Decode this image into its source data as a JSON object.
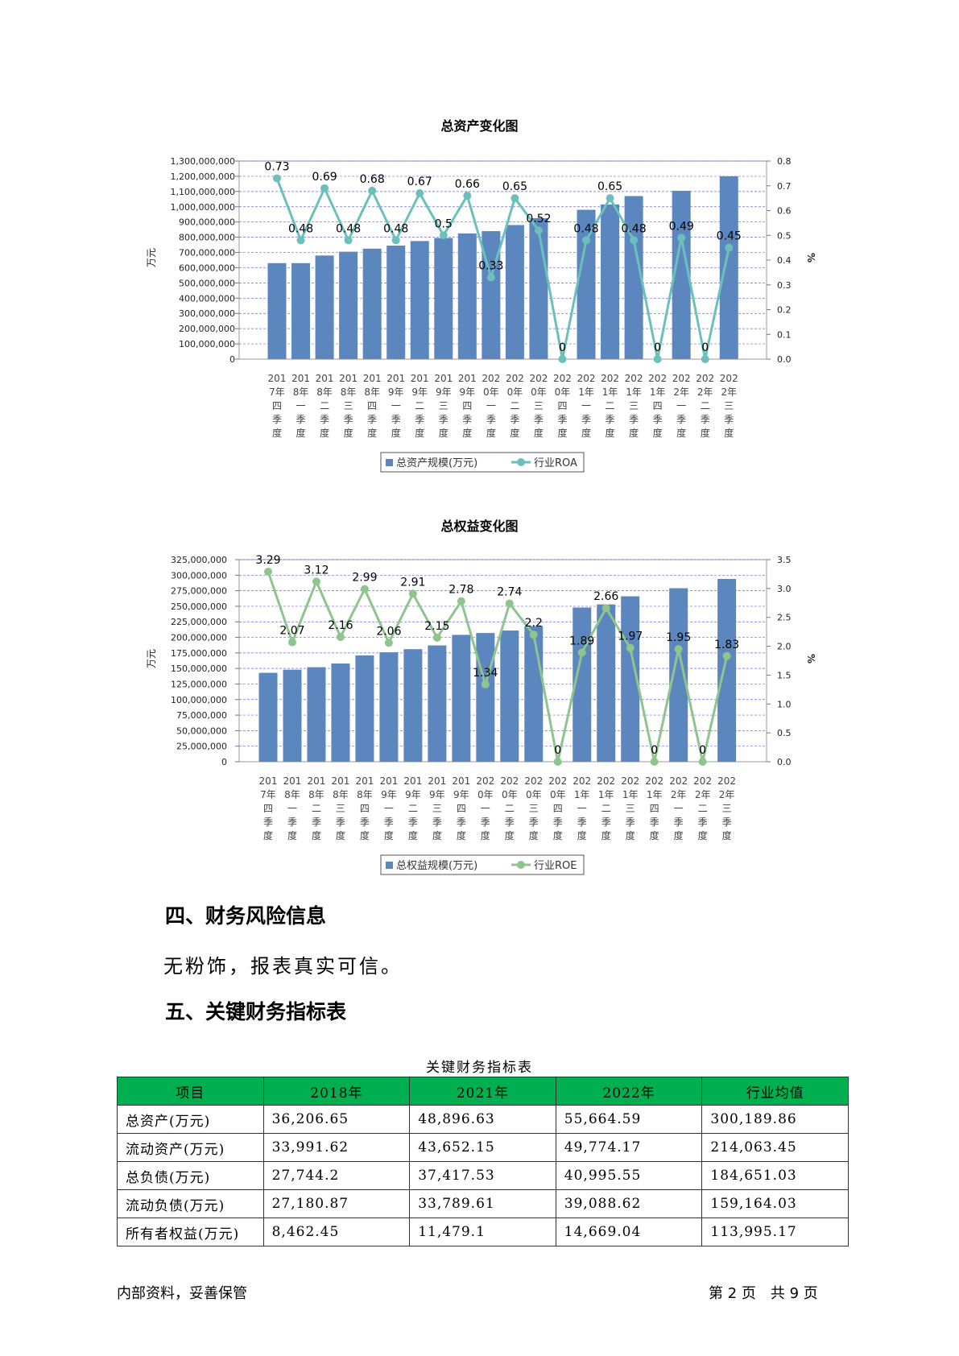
{
  "charts": [
    {
      "title": "总资产变化图",
      "ylabel_left": "万元",
      "ylabel_right": "%",
      "left_ticks": [
        "1,300,000,000",
        "1,200,000,000",
        "1,100,000,000",
        "1,000,000,000",
        "900,000,000",
        "800,000,000",
        "700,000,000",
        "600,000,000",
        "500,000,000",
        "400,000,000",
        "300,000,000",
        "200,000,000",
        "100,000,000",
        "0"
      ],
      "right_ticks": [
        "0.8",
        "0.7",
        "0.6",
        "0.5",
        "0.4",
        "0.3",
        "0.2",
        "0.1",
        "0.0"
      ],
      "categories": [
        [
          "201",
          "7年",
          "四",
          "季",
          "度"
        ],
        [
          "201",
          "8年",
          "一",
          "季",
          "度"
        ],
        [
          "201",
          "8年",
          "二",
          "季",
          "度"
        ],
        [
          "201",
          "8年",
          "三",
          "季",
          "度"
        ],
        [
          "201",
          "8年",
          "四",
          "季",
          "度"
        ],
        [
          "201",
          "9年",
          "一",
          "季",
          "度"
        ],
        [
          "201",
          "9年",
          "二",
          "季",
          "度"
        ],
        [
          "201",
          "9年",
          "三",
          "季",
          "度"
        ],
        [
          "201",
          "9年",
          "四",
          "季",
          "度"
        ],
        [
          "202",
          "0年",
          "一",
          "季",
          "度"
        ],
        [
          "202",
          "0年",
          "二",
          "季",
          "度"
        ],
        [
          "202",
          "0年",
          "三",
          "季",
          "度"
        ],
        [
          "202",
          "0年",
          "四",
          "季",
          "度"
        ],
        [
          "202",
          "1年",
          "一",
          "季",
          "度"
        ],
        [
          "202",
          "1年",
          "二",
          "季",
          "度"
        ],
        [
          "202",
          "1年",
          "三",
          "季",
          "度"
        ],
        [
          "202",
          "1年",
          "四",
          "季",
          "度"
        ],
        [
          "202",
          "2年",
          "一",
          "季",
          "度"
        ],
        [
          "202",
          "2年",
          "二",
          "季",
          "度"
        ],
        [
          "202",
          "2年",
          "三",
          "季",
          "度"
        ]
      ],
      "legend_bar": "总资产规模(万元)",
      "legend_line": "行业ROA",
      "line_labels": [
        "0.73",
        "0.48",
        "0.69",
        "0.48",
        "0.68",
        "0.48",
        "0.67",
        "0.5",
        "0.66",
        "0.33",
        "0.65",
        "0.52",
        "0",
        "0.48",
        "0.65",
        "0.48",
        "0",
        "0.49",
        "0",
        "0.45"
      ],
      "colors": {
        "bar": "#5b86be",
        "line": "#6cc0bb"
      }
    },
    {
      "title": "总权益变化图",
      "ylabel_left": "万元",
      "ylabel_right": "%",
      "left_ticks": [
        "325,000,000",
        "300,000,000",
        "275,000,000",
        "250,000,000",
        "225,000,000",
        "200,000,000",
        "175,000,000",
        "150,000,000",
        "125,000,000",
        "100,000,000",
        "75,000,000",
        "50,000,000",
        "25,000,000",
        "0"
      ],
      "right_ticks": [
        "3.5",
        "3.0",
        "2.5",
        "2.0",
        "1.5",
        "1.0",
        "0.5",
        "0.0"
      ],
      "categories": [
        [
          "201",
          "7年",
          "四",
          "季",
          "度"
        ],
        [
          "201",
          "8年",
          "一",
          "季",
          "度"
        ],
        [
          "201",
          "8年",
          "二",
          "季",
          "度"
        ],
        [
          "201",
          "8年",
          "三",
          "季",
          "度"
        ],
        [
          "201",
          "8年",
          "四",
          "季",
          "度"
        ],
        [
          "201",
          "9年",
          "一",
          "季",
          "度"
        ],
        [
          "201",
          "9年",
          "二",
          "季",
          "度"
        ],
        [
          "201",
          "9年",
          "三",
          "季",
          "度"
        ],
        [
          "201",
          "9年",
          "四",
          "季",
          "度"
        ],
        [
          "202",
          "0年",
          "一",
          "季",
          "度"
        ],
        [
          "202",
          "0年",
          "二",
          "季",
          "度"
        ],
        [
          "202",
          "0年",
          "三",
          "季",
          "度"
        ],
        [
          "202",
          "0年",
          "四",
          "季",
          "度"
        ],
        [
          "202",
          "1年",
          "一",
          "季",
          "度"
        ],
        [
          "202",
          "1年",
          "二",
          "季",
          "度"
        ],
        [
          "202",
          "1年",
          "三",
          "季",
          "度"
        ],
        [
          "202",
          "1年",
          "四",
          "季",
          "度"
        ],
        [
          "202",
          "2年",
          "一",
          "季",
          "度"
        ],
        [
          "202",
          "2年",
          "二",
          "季",
          "度"
        ],
        [
          "202",
          "2年",
          "三",
          "季",
          "度"
        ]
      ],
      "legend_bar": "总权益规模(万元)",
      "legend_line": "行业ROE",
      "line_labels": [
        "3.29",
        "2.07",
        "3.12",
        "2.16",
        "2.99",
        "2.06",
        "2.91",
        "2.15",
        "2.78",
        "1.34",
        "2.74",
        "2.2",
        "0",
        "1.89",
        "2.66",
        "1.97",
        "0",
        "1.95",
        "0",
        "1.83"
      ],
      "colors": {
        "bar": "#5b86be",
        "line": "#8fc48f"
      }
    }
  ],
  "chart_data": [
    {
      "type": "bar",
      "title": "总资产变化图",
      "xlabel": "",
      "ylabel": "万元",
      "ylabel_right": "%",
      "ylim": [
        0,
        1300000000
      ],
      "ylim_right": [
        0,
        0.8
      ],
      "grid": true,
      "legend": "bottom",
      "categories": [
        "2017年四季度",
        "2018年一季度",
        "2018年二季度",
        "2018年三季度",
        "2018年四季度",
        "2019年一季度",
        "2019年二季度",
        "2019年三季度",
        "2019年四季度",
        "2020年一季度",
        "2020年二季度",
        "2020年三季度",
        "2020年四季度",
        "2021年一季度",
        "2021年二季度",
        "2021年三季度",
        "2021年四季度",
        "2022年一季度",
        "2022年二季度",
        "2022年三季度"
      ],
      "series": [
        {
          "name": "总资产规模(万元)",
          "type": "bar",
          "axis": "left",
          "values": [
            630000000,
            630000000,
            680000000,
            705000000,
            725000000,
            745000000,
            775000000,
            795000000,
            825000000,
            840000000,
            880000000,
            925000000,
            0,
            980000000,
            1015000000,
            1070000000,
            0,
            1105000000,
            0,
            1200000000
          ]
        },
        {
          "name": "行业ROA",
          "type": "line",
          "axis": "right",
          "values": [
            0.73,
            0.48,
            0.69,
            0.48,
            0.68,
            0.48,
            0.67,
            0.5,
            0.66,
            0.33,
            0.65,
            0.52,
            0,
            0.48,
            0.65,
            0.48,
            0,
            0.49,
            0,
            0.45
          ]
        }
      ]
    },
    {
      "type": "bar",
      "title": "总权益变化图",
      "xlabel": "",
      "ylabel": "万元",
      "ylabel_right": "%",
      "ylim": [
        0,
        325000000
      ],
      "ylim_right": [
        0,
        3.5
      ],
      "grid": true,
      "legend": "bottom",
      "categories": [
        "2017年四季度",
        "2018年一季度",
        "2018年二季度",
        "2018年三季度",
        "2018年四季度",
        "2019年一季度",
        "2019年二季度",
        "2019年三季度",
        "2019年四季度",
        "2020年一季度",
        "2020年二季度",
        "2020年三季度",
        "2020年四季度",
        "2021年一季度",
        "2021年二季度",
        "2021年三季度",
        "2021年四季度",
        "2022年一季度",
        "2022年二季度",
        "2022年三季度"
      ],
      "series": [
        {
          "name": "总权益规模(万元)",
          "type": "bar",
          "axis": "left",
          "values": [
            143000000,
            148000000,
            152000000,
            158000000,
            171000000,
            176000000,
            181000000,
            187000000,
            204000000,
            207000000,
            211000000,
            218000000,
            0,
            248000000,
            253000000,
            266000000,
            0,
            279000000,
            0,
            294000000
          ]
        },
        {
          "name": "行业ROE",
          "type": "line",
          "axis": "right",
          "values": [
            3.29,
            2.07,
            3.12,
            2.16,
            2.99,
            2.06,
            2.91,
            2.15,
            2.78,
            1.34,
            2.74,
            2.2,
            0,
            1.89,
            2.66,
            1.97,
            0,
            1.95,
            0,
            1.83
          ]
        }
      ]
    }
  ],
  "section4": {
    "heading": "四、财务风险信息",
    "text": "无粉饰，报表真实可信。"
  },
  "section5": {
    "heading": "五、关键财务指标表"
  },
  "table": {
    "caption": "关键财务指标表",
    "headers": [
      "项目",
      "2018年",
      "2021年",
      "2022年",
      "行业均值"
    ],
    "rows": [
      [
        "总资产(万元)",
        "36,206.65",
        "48,896.63",
        "55,664.59",
        "300,189.86"
      ],
      [
        "流动资产(万元)",
        "33,991.62",
        "43,652.15",
        "49,774.17",
        "214,063.45"
      ],
      [
        "总负债(万元)",
        "27,744.2",
        "37,417.53",
        "40,995.55",
        "184,651.03"
      ],
      [
        "流动负债(万元)",
        "27,180.87",
        "33,789.61",
        "39,088.62",
        "159,164.03"
      ],
      [
        "所有者权益(万元)",
        "8,462.45",
        "11,479.1",
        "14,669.04",
        "113,995.17"
      ]
    ],
    "header_color": "#00b050"
  },
  "footer": {
    "left": "内部资料，妥善保管",
    "right": "第 2 页　共 9 页"
  }
}
